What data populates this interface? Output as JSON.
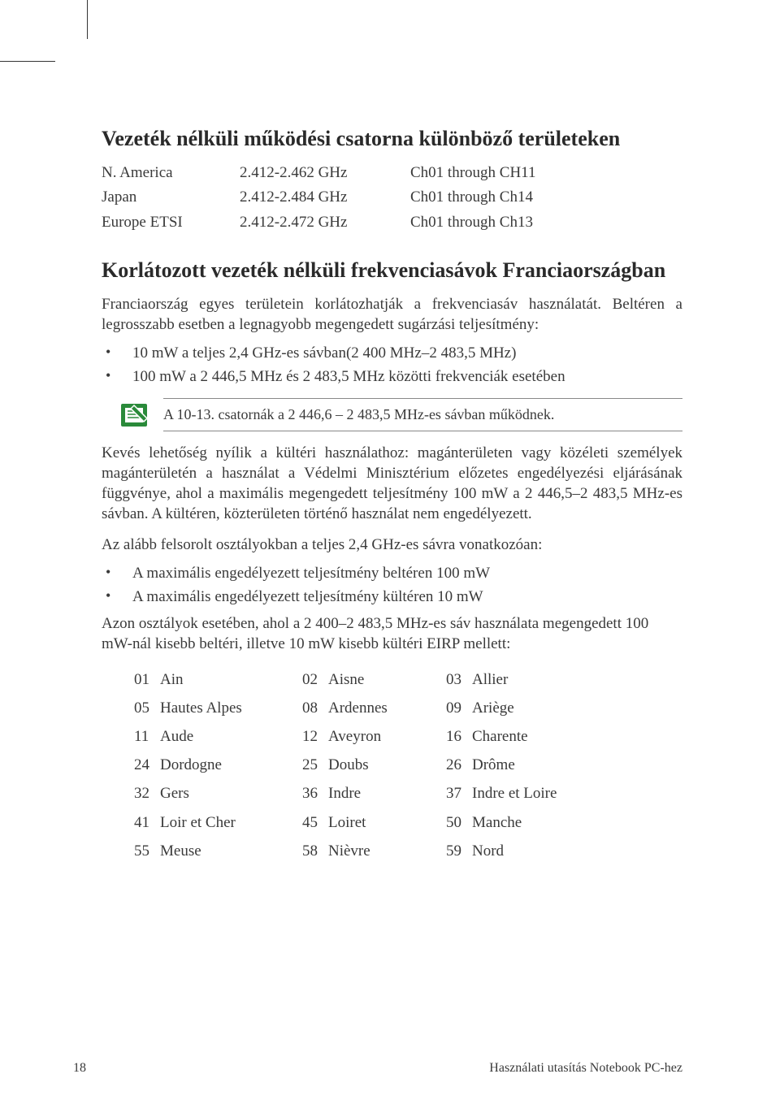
{
  "heading1": "Vezeték nélküli működési csatorna különböző területeken",
  "freq_rows": [
    {
      "region": "N. America",
      "range": "2.412-2.462 GHz",
      "channels": "Ch01 through CH11"
    },
    {
      "region": "Japan",
      "range": "2.412-2.484 GHz",
      "channels": "Ch01 through Ch14"
    },
    {
      "region": "Europe ETSI",
      "range": "2.412-2.472 GHz",
      "channels": "Ch01 through Ch13"
    }
  ],
  "heading2": "Korlátozott vezeték nélküli frekvenciasávok Franciaországban",
  "para1": "Franciaország egyes területein korlátozhatják a frekvenciasáv használatát. Beltéren a legrosszabb esetben a legnagyobb megengedett sugárzási teljesítmény:",
  "bullets1": [
    "10 mW a teljes 2,4 GHz-es sávban(2 400 MHz–2 483,5 MHz)",
    "100 mW a 2 446,5 MHz és 2 483,5 MHz közötti frekvenciák esetében"
  ],
  "note_text": "A 10-13. csatornák a 2 446,6 – 2 483,5 MHz-es sávban működnek.",
  "para2": "Kevés lehetőség nyílik a kültéri használathoz: magánterületen vagy közéleti személyek magánterületén a használat a Védelmi Minisztérium előzetes engedélyezési eljárásának függvénye, ahol a maximális megengedett teljesítmény 100 mW a 2 446,5–2 483,5 MHz-es sávban. A kültéren, közterületen történő használat nem engedélyezett.",
  "para3": "Az alább felsorolt osztályokban a teljes 2,4 GHz-es sávra vonatkozóan:",
  "bullets2": [
    "A maximális engedélyezett teljesítmény beltéren 100 mW",
    "A maximális engedélyezett teljesítmény kültéren 10 mW"
  ],
  "para4": "Azon osztályok esetében, ahol a 2 400–2 483,5 MHz-es sáv használata megengedett 100 mW-nál kisebb beltéri, illetve 10 mW kisebb kültéri EIRP mellett:",
  "departments": [
    [
      "01",
      "Ain",
      "02",
      "Aisne",
      "03",
      "Allier"
    ],
    [
      "05",
      "Hautes Alpes",
      "08",
      "Ardennes",
      "09",
      "Ariège"
    ],
    [
      "11",
      "Aude",
      "12",
      "Aveyron",
      "16",
      "Charente"
    ],
    [
      "24",
      "Dordogne",
      "25",
      "Doubs",
      "26",
      "Drôme"
    ],
    [
      "32",
      "Gers",
      "36",
      "Indre",
      "37",
      "Indre et Loire"
    ],
    [
      "41",
      "Loir et Cher",
      "45",
      "Loiret",
      "50",
      "Manche"
    ],
    [
      "55",
      "Meuse",
      "58",
      "Nièvre",
      "59",
      "Nord"
    ]
  ],
  "page_number": "18",
  "footer_text": "Használati utasítás Notebook PC-hez",
  "note_icon_color": "#2a8a3a"
}
